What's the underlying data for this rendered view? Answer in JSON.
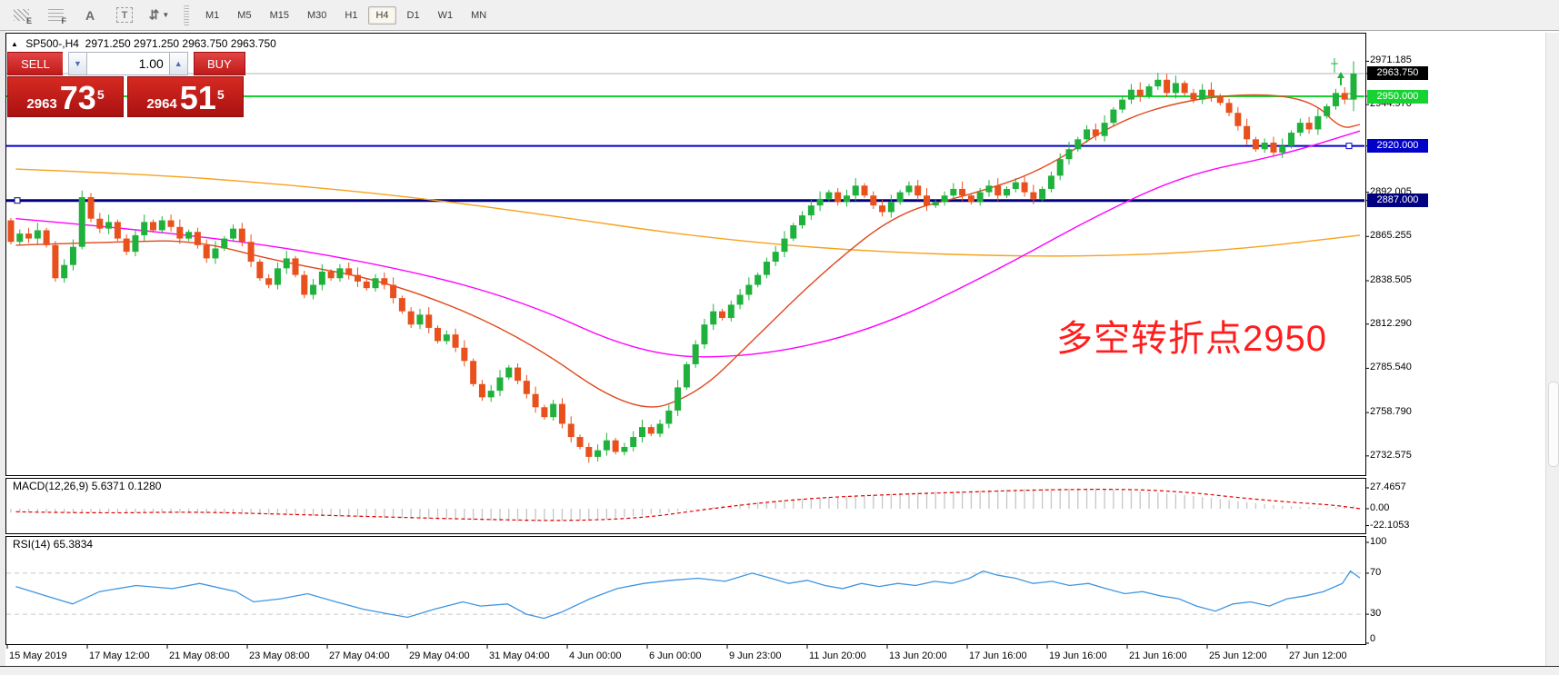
{
  "toolbar": {
    "icons": [
      {
        "name": "expert-advisor-icon",
        "glyph": "E"
      },
      {
        "name": "fibonacci-grid-icon",
        "glyph": "F"
      },
      {
        "name": "text-tool-icon",
        "glyph": "A"
      },
      {
        "name": "text-label-tool-icon",
        "glyph": "T"
      },
      {
        "name": "arrow-tools-icon",
        "glyph": "⇵"
      }
    ],
    "timeframes": [
      "M1",
      "M5",
      "M15",
      "M30",
      "H1",
      "H4",
      "D1",
      "W1",
      "MN"
    ],
    "active_timeframe": "H4"
  },
  "header": {
    "collapse_icon": "▲",
    "symbol": "SP500-,H4",
    "ohlc": "2971.250 2971.250 2963.750 2963.750"
  },
  "trade_panel": {
    "sell_label": "SELL",
    "buy_label": "BUY",
    "volume": "1.00",
    "sell_small": "2963",
    "sell_big": "73",
    "sell_sup": "5",
    "buy_small": "2964",
    "buy_big": "51",
    "buy_sup": "5"
  },
  "annotation": {
    "text": "多空转折点2950",
    "color": "#ff1e1e"
  },
  "colors": {
    "bull": "#1fb13c",
    "bear": "#e8501c",
    "ma_slow": "#f7a21b",
    "ma_medium": "#ff00ff",
    "ma_fast": "#e0481c",
    "line_2950": "#16d332",
    "line_2920": "#0000c8",
    "line_2887": "#000080",
    "current_price_line": "#b4b4b4",
    "macd_histogram": "#c6c6c6",
    "macd_signal": "#e00000",
    "rsi_line": "#3f96e0"
  },
  "price_axis": {
    "plain_ticks": [
      "2971.185",
      "2944.970",
      "2892.005",
      "2865.255",
      "2838.505",
      "2812.290",
      "2785.540",
      "2758.790",
      "2732.575"
    ],
    "badges": [
      {
        "label": "2963.750",
        "bg": "#000000"
      },
      {
        "label": "2950.000",
        "bg": "#16d332"
      },
      {
        "label": "2920.000",
        "bg": "#0000c8"
      },
      {
        "label": "2887.000",
        "bg": "#000080"
      }
    ]
  },
  "dates": [
    "15 May 2019",
    "17 May 12:00",
    "21 May 08:00",
    "23 May 08:00",
    "27 May 04:00",
    "29 May 04:00",
    "31 May 04:00",
    "4 Jun 00:00",
    "6 Jun 00:00",
    "9 Jun 23:00",
    "11 Jun 20:00",
    "13 Jun 20:00",
    "17 Jun 16:00",
    "19 Jun 16:00",
    "21 Jun 16:00",
    "25 Jun 12:00",
    "27 Jun 12:00"
  ],
  "chart_data": [
    {
      "type": "candlestick",
      "symbol": "SP500-",
      "timeframe": "H4",
      "current_ohlc": {
        "open": 2971.25,
        "high": 2971.25,
        "low": 2963.75,
        "close": 2963.75
      },
      "ylim": [
        2732.575,
        2971.185
      ],
      "y_ticks": [
        2971.185,
        2963.75,
        2950.0,
        2944.97,
        2920.0,
        2892.005,
        2887.0,
        2865.255,
        2838.505,
        2812.29,
        2785.54,
        2758.79,
        2732.575
      ],
      "first_open": 2875,
      "closes": [
        2862,
        2867,
        2864,
        2869,
        2860,
        2840,
        2848,
        2859,
        2889,
        2876,
        2870,
        2874,
        2864,
        2856,
        2866,
        2874,
        2869,
        2875,
        2871,
        2864,
        2868,
        2860,
        2852,
        2858,
        2864,
        2870,
        2862,
        2850,
        2840,
        2836,
        2846,
        2852,
        2842,
        2830,
        2836,
        2844,
        2840,
        2846,
        2842,
        2838,
        2834,
        2840,
        2836,
        2828,
        2820,
        2812,
        2818,
        2810,
        2802,
        2806,
        2798,
        2790,
        2776,
        2768,
        2772,
        2780,
        2786,
        2778,
        2770,
        2762,
        2756,
        2764,
        2752,
        2744,
        2738,
        2732,
        2736,
        2742,
        2735,
        2738,
        2744,
        2750,
        2746,
        2752,
        2760,
        2774,
        2788,
        2800,
        2812,
        2820,
        2816,
        2824,
        2830,
        2836,
        2842,
        2850,
        2856,
        2864,
        2872,
        2878,
        2884,
        2888,
        2892,
        2886,
        2890,
        2896,
        2890,
        2884,
        2880,
        2886,
        2892,
        2896,
        2890,
        2884,
        2886,
        2890,
        2894,
        2890,
        2886,
        2892,
        2896,
        2890,
        2894,
        2898,
        2892,
        2888,
        2894,
        2902,
        2912,
        2918,
        2924,
        2930,
        2926,
        2934,
        2942,
        2948,
        2954,
        2950,
        2956,
        2960,
        2952,
        2958,
        2952,
        2948,
        2954,
        2950,
        2946,
        2940,
        2932,
        2924,
        2918,
        2922,
        2916,
        2920,
        2928,
        2934,
        2930,
        2938,
        2944,
        2952,
        2948,
        2964
      ],
      "overrides": {
        "8": {
          "high": 2893
        },
        "65": {
          "low": 2728.5
        },
        "129": {
          "high": 2964.2
        },
        "151": {
          "open": 2948,
          "high": 2971.2,
          "low": 2941,
          "close": 2963.75
        }
      },
      "hlines": [
        {
          "price": 2963.75,
          "color": "#b4b4b4",
          "width": 1,
          "label": "2963.750",
          "marker": "none"
        },
        {
          "price": 2950.0,
          "color": "#16d332",
          "width": 2,
          "label": "2950.000",
          "marker": "right"
        },
        {
          "price": 2920.0,
          "color": "#0000c8",
          "width": 2,
          "label": "2920.000",
          "marker": "right"
        },
        {
          "price": 2887.0,
          "color": "#000080",
          "width": 3,
          "label": "2887.000",
          "marker": "left"
        }
      ],
      "moving_averages": [
        {
          "name": "slow",
          "color": "#f7a21b",
          "points": [
            [
              0.005,
              2906
            ],
            [
              0.1,
              2903
            ],
            [
              0.2,
              2897
            ],
            [
              0.3,
              2889
            ],
            [
              0.4,
              2878
            ],
            [
              0.5,
              2866
            ],
            [
              0.6,
              2858
            ],
            [
              0.7,
              2854
            ],
            [
              0.805,
              2853
            ],
            [
              0.906,
              2857
            ],
            [
              1.0,
              2866
            ]
          ]
        },
        {
          "name": "medium",
          "color": "#ff00ff",
          "points": [
            [
              0.005,
              2876
            ],
            [
              0.134,
              2867
            ],
            [
              0.268,
              2850
            ],
            [
              0.376,
              2828
            ],
            [
              0.47,
              2793
            ],
            [
              0.55,
              2792
            ],
            [
              0.638,
              2808
            ],
            [
              0.725,
              2842
            ],
            [
              0.805,
              2878
            ],
            [
              0.872,
              2903
            ],
            [
              0.94,
              2914
            ],
            [
              1.0,
              2929
            ]
          ]
        },
        {
          "name": "fast",
          "color": "#e0481c",
          "points": [
            [
              0.005,
              2860
            ],
            [
              0.08,
              2862
            ],
            [
              0.138,
              2863
            ],
            [
              0.2,
              2850
            ],
            [
              0.282,
              2838
            ],
            [
              0.376,
              2807
            ],
            [
              0.463,
              2757
            ],
            [
              0.51,
              2770
            ],
            [
              0.55,
              2802
            ],
            [
              0.604,
              2845
            ],
            [
              0.658,
              2880
            ],
            [
              0.71,
              2890
            ],
            [
              0.765,
              2905
            ],
            [
              0.82,
              2935
            ],
            [
              0.872,
              2948
            ],
            [
              0.926,
              2952
            ],
            [
              0.966,
              2947
            ],
            [
              0.986,
              2930
            ],
            [
              1.0,
              2933
            ]
          ]
        }
      ]
    },
    {
      "type": "bar",
      "name": "MACD",
      "label": "MACD(12,26,9) 5.6371 0.1280",
      "current_main": 5.6371,
      "current_signal": 0.128,
      "ylim": [
        -22.1053,
        27.4657
      ],
      "axis_ticks": [
        {
          "value": 27.4657,
          "label": "27.4657"
        },
        {
          "value": 0,
          "label": "0.00"
        },
        {
          "value": -22.1053,
          "label": "-22.1053"
        }
      ],
      "histogram_keypoints": [
        [
          0.005,
          -5
        ],
        [
          0.1,
          -5
        ],
        [
          0.2,
          -8
        ],
        [
          0.3,
          -13
        ],
        [
          0.38,
          -17
        ],
        [
          0.435,
          -15
        ],
        [
          0.483,
          -6
        ],
        [
          0.537,
          6
        ],
        [
          0.59,
          14
        ],
        [
          0.644,
          19
        ],
        [
          0.698,
          23
        ],
        [
          0.75,
          26
        ],
        [
          0.805,
          27
        ],
        [
          0.86,
          20
        ],
        [
          0.9,
          12
        ],
        [
          0.94,
          4
        ],
        [
          0.973,
          1
        ],
        [
          0.99,
          3
        ],
        [
          1.0,
          5.6
        ]
      ],
      "signal_keypoints": [
        [
          0.005,
          -4
        ],
        [
          0.067,
          -6
        ],
        [
          0.134,
          -4
        ],
        [
          0.2,
          -7
        ],
        [
          0.282,
          -11
        ],
        [
          0.35,
          -14
        ],
        [
          0.416,
          -16
        ],
        [
          0.47,
          -12
        ],
        [
          0.51,
          -2
        ],
        [
          0.557,
          8
        ],
        [
          0.604,
          15
        ],
        [
          0.658,
          19
        ],
        [
          0.71,
          22
        ],
        [
          0.765,
          25
        ],
        [
          0.825,
          26
        ],
        [
          0.872,
          22
        ],
        [
          0.913,
          14
        ],
        [
          0.953,
          8
        ],
        [
          0.98,
          5
        ],
        [
          1.0,
          0.13
        ]
      ]
    },
    {
      "type": "line",
      "name": "RSI",
      "label": "RSI(14) 65.3834",
      "current": 65.3834,
      "ylim": [
        0,
        100
      ],
      "levels": [
        70,
        30
      ],
      "axis_ticks": [
        {
          "value": 100,
          "label": "100"
        },
        {
          "value": 70,
          "label": "70"
        },
        {
          "value": 30,
          "label": "30"
        },
        {
          "value": 0,
          "label": "0"
        }
      ],
      "points": [
        [
          0.005,
          57
        ],
        [
          0.027,
          48
        ],
        [
          0.047,
          40
        ],
        [
          0.067,
          52
        ],
        [
          0.094,
          58
        ],
        [
          0.121,
          55
        ],
        [
          0.141,
          60
        ],
        [
          0.168,
          52
        ],
        [
          0.181,
          42
        ],
        [
          0.201,
          45
        ],
        [
          0.221,
          50
        ],
        [
          0.242,
          42
        ],
        [
          0.262,
          35
        ],
        [
          0.282,
          30
        ],
        [
          0.295,
          27
        ],
        [
          0.315,
          35
        ],
        [
          0.336,
          42
        ],
        [
          0.349,
          38
        ],
        [
          0.369,
          40
        ],
        [
          0.383,
          30
        ],
        [
          0.396,
          26
        ],
        [
          0.409,
          32
        ],
        [
          0.43,
          45
        ],
        [
          0.45,
          55
        ],
        [
          0.47,
          60
        ],
        [
          0.49,
          63
        ],
        [
          0.51,
          65
        ],
        [
          0.53,
          62
        ],
        [
          0.55,
          70
        ],
        [
          0.564,
          65
        ],
        [
          0.577,
          60
        ],
        [
          0.591,
          63
        ],
        [
          0.604,
          58
        ],
        [
          0.617,
          55
        ],
        [
          0.631,
          60
        ],
        [
          0.644,
          57
        ],
        [
          0.658,
          60
        ],
        [
          0.671,
          58
        ],
        [
          0.685,
          62
        ],
        [
          0.698,
          60
        ],
        [
          0.711,
          65
        ],
        [
          0.721,
          72
        ],
        [
          0.732,
          68
        ],
        [
          0.745,
          65
        ],
        [
          0.758,
          60
        ],
        [
          0.772,
          62
        ],
        [
          0.785,
          58
        ],
        [
          0.799,
          60
        ],
        [
          0.812,
          55
        ],
        [
          0.826,
          50
        ],
        [
          0.839,
          52
        ],
        [
          0.852,
          48
        ],
        [
          0.866,
          45
        ],
        [
          0.879,
          38
        ],
        [
          0.893,
          33
        ],
        [
          0.906,
          40
        ],
        [
          0.919,
          42
        ],
        [
          0.933,
          38
        ],
        [
          0.946,
          45
        ],
        [
          0.96,
          48
        ],
        [
          0.973,
          52
        ],
        [
          0.987,
          60
        ],
        [
          0.993,
          72
        ],
        [
          1.0,
          65.4
        ]
      ]
    }
  ]
}
